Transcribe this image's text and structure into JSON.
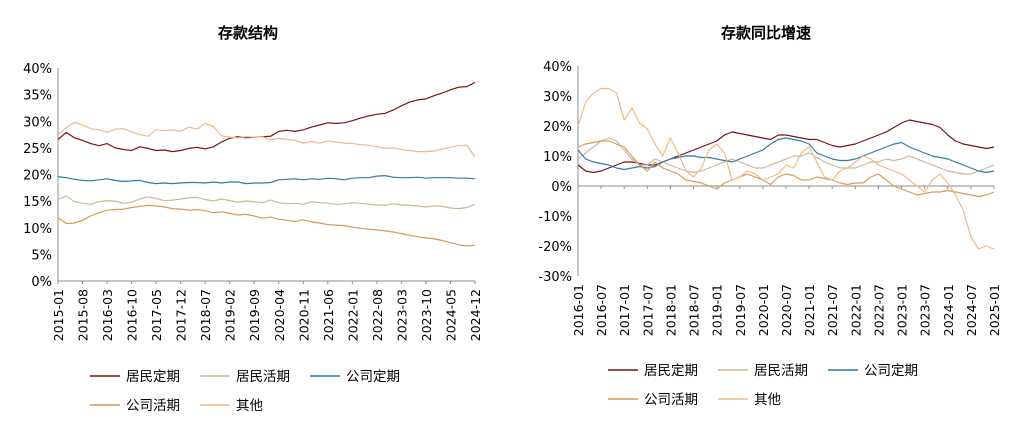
{
  "chart_data": [
    {
      "type": "line",
      "title": "存款结构",
      "xlabel": "",
      "ylabel": "",
      "ylim": [
        0,
        40
      ],
      "y_ticks": [
        "0%",
        "5%",
        "10%",
        "15%",
        "20%",
        "25%",
        "30%",
        "35%",
        "40%"
      ],
      "x": [
        "2015-01",
        "2015-03",
        "2015-05",
        "2015-08",
        "2015-10",
        "2015-12",
        "2016-03",
        "2016-05",
        "2016-08",
        "2016-10",
        "2016-12",
        "2017-03",
        "2017-05",
        "2017-08",
        "2017-10",
        "2017-12",
        "2018-03",
        "2018-05",
        "2018-07",
        "2018-10",
        "2018-12",
        "2019-02",
        "2019-04",
        "2019-06",
        "2019-09",
        "2019-11",
        "2020-01",
        "2020-04",
        "2020-06",
        "2020-09",
        "2020-11",
        "2021-01",
        "2021-04",
        "2021-06",
        "2021-08",
        "2021-10",
        "2022-01",
        "2022-03",
        "2022-05",
        "2022-08",
        "2022-10",
        "2022-12",
        "2023-03",
        "2023-05",
        "2023-08",
        "2023-10",
        "2023-12",
        "2024-02",
        "2024-05",
        "2024-07",
        "2024-09",
        "2024-12"
      ],
      "x_tick_labels": [
        "2015-01",
        "2015-08",
        "2016-03",
        "2016-10",
        "2017-05",
        "2017-12",
        "2018-07",
        "2019-02",
        "2019-09",
        "2020-04",
        "2020-11",
        "2021-06",
        "2022-01",
        "2022-08",
        "2023-03",
        "2023-10",
        "2024-05",
        "2024-12"
      ],
      "series": [
        {
          "name": "居民定期",
          "color": "#7b1113",
          "values": [
            26.6,
            27.9,
            26.9,
            26.4,
            25.8,
            25.4,
            25.8,
            25.0,
            24.7,
            24.5,
            25.2,
            24.9,
            24.5,
            24.6,
            24.3,
            24.5,
            24.9,
            25.1,
            24.8,
            25.2,
            26.1,
            26.8,
            27.1,
            26.9,
            27.0,
            27.1,
            27.2,
            28.1,
            28.3,
            28.1,
            28.4,
            28.9,
            29.3,
            29.7,
            29.6,
            29.7,
            30.1,
            30.6,
            31.0,
            31.3,
            31.5,
            32.1,
            32.9,
            33.6,
            34.0,
            34.2,
            34.8,
            35.3,
            35.9,
            36.4,
            36.5,
            37.3
          ]
        },
        {
          "name": "居民活期",
          "color": "#c9b89d",
          "values": [
            15.3,
            16.0,
            14.9,
            14.6,
            14.4,
            14.9,
            15.1,
            15.0,
            14.6,
            14.8,
            15.4,
            15.8,
            15.5,
            15.1,
            15.2,
            15.4,
            15.6,
            15.7,
            15.3,
            15.0,
            15.4,
            15.1,
            14.8,
            15.0,
            14.9,
            14.7,
            15.2,
            14.7,
            14.5,
            14.6,
            14.4,
            14.9,
            14.7,
            14.6,
            14.4,
            14.5,
            14.7,
            14.6,
            14.4,
            14.3,
            14.2,
            14.5,
            14.3,
            14.2,
            14.1,
            13.9,
            14.1,
            14.0,
            13.7,
            13.6,
            13.8,
            14.4
          ]
        },
        {
          "name": "公司定期",
          "color": "#2f7d9f",
          "values": [
            19.6,
            19.4,
            19.1,
            18.9,
            18.8,
            19.0,
            19.2,
            18.9,
            18.7,
            18.8,
            18.9,
            18.5,
            18.3,
            18.4,
            18.3,
            18.4,
            18.5,
            18.5,
            18.4,
            18.6,
            18.4,
            18.6,
            18.6,
            18.3,
            18.4,
            18.4,
            18.5,
            19.0,
            19.1,
            19.2,
            19.0,
            19.2,
            19.1,
            19.3,
            19.2,
            19.0,
            19.3,
            19.4,
            19.4,
            19.7,
            19.8,
            19.5,
            19.4,
            19.4,
            19.5,
            19.3,
            19.4,
            19.4,
            19.4,
            19.3,
            19.3,
            19.2
          ]
        },
        {
          "name": "公司活期",
          "color": "#d79a5b",
          "values": [
            11.9,
            10.8,
            10.9,
            11.4,
            12.2,
            12.8,
            13.3,
            13.4,
            13.5,
            13.8,
            14.0,
            14.2,
            14.1,
            13.9,
            13.6,
            13.5,
            13.3,
            13.4,
            13.2,
            12.8,
            13.0,
            12.7,
            12.4,
            12.5,
            12.2,
            11.8,
            12.0,
            11.6,
            11.4,
            11.2,
            11.5,
            11.1,
            10.9,
            10.6,
            10.5,
            10.4,
            10.1,
            9.9,
            9.7,
            9.6,
            9.4,
            9.2,
            8.9,
            8.6,
            8.3,
            8.1,
            7.9,
            7.6,
            7.2,
            6.8,
            6.6,
            6.7
          ]
        },
        {
          "name": "其他",
          "color": "#f0b987",
          "values": [
            27.5,
            28.8,
            29.8,
            29.3,
            28.6,
            28.4,
            27.9,
            28.5,
            28.6,
            28.0,
            27.5,
            27.2,
            28.4,
            28.2,
            28.4,
            28.1,
            28.9,
            28.5,
            29.6,
            29.0,
            27.3,
            27.0,
            26.9,
            27.1,
            27.0,
            27.1,
            26.5,
            26.8,
            26.6,
            26.4,
            25.9,
            26.2,
            25.9,
            26.3,
            26.1,
            25.9,
            25.8,
            25.6,
            25.5,
            25.2,
            24.9,
            25.0,
            24.7,
            24.5,
            24.3,
            24.3,
            24.4,
            24.8,
            25.1,
            25.4,
            25.5,
            23.3
          ]
        }
      ],
      "legend": "bottom"
    },
    {
      "type": "line",
      "title": "存款同比增速",
      "xlabel": "",
      "ylabel": "",
      "ylim": [
        -30,
        40
      ],
      "y_ticks": [
        "-30%",
        "-20%",
        "-10%",
        "0%",
        "10%",
        "20%",
        "30%",
        "40%"
      ],
      "x": [
        "2016-01",
        "2016-03",
        "2016-05",
        "2016-07",
        "2016-09",
        "2016-11",
        "2017-01",
        "2017-03",
        "2017-05",
        "2017-07",
        "2017-09",
        "2017-11",
        "2018-01",
        "2018-03",
        "2018-05",
        "2018-07",
        "2018-09",
        "2018-11",
        "2019-01",
        "2019-03",
        "2019-05",
        "2019-07",
        "2019-09",
        "2019-11",
        "2020-01",
        "2020-03",
        "2020-05",
        "2020-07",
        "2020-09",
        "2020-11",
        "2021-01",
        "2021-03",
        "2021-05",
        "2021-07",
        "2021-09",
        "2021-11",
        "2022-01",
        "2022-03",
        "2022-05",
        "2022-07",
        "2022-09",
        "2022-11",
        "2023-01",
        "2023-03",
        "2023-05",
        "2023-07",
        "2023-09",
        "2023-11",
        "2024-01",
        "2024-03",
        "2024-05",
        "2024-07",
        "2024-09",
        "2024-11",
        "2025-01"
      ],
      "x_tick_labels": [
        "2016-01",
        "2016-07",
        "2017-01",
        "2017-07",
        "2018-01",
        "2018-07",
        "2019-01",
        "2019-07",
        "2020-01",
        "2020-07",
        "2021-01",
        "2021-07",
        "2022-01",
        "2022-07",
        "2023-01",
        "2023-07",
        "2024-01",
        "2024-07",
        "2025-01"
      ],
      "series": [
        {
          "name": "居民定期",
          "color": "#7b1113",
          "values": [
            7,
            5,
            4.5,
            5,
            6,
            7,
            8,
            8,
            7.5,
            7,
            7,
            8,
            9,
            10,
            11,
            12,
            13,
            14,
            15,
            17,
            18,
            17.5,
            17,
            16.5,
            16,
            15.5,
            17,
            17,
            16.5,
            16,
            15.5,
            15.5,
            14.5,
            13.5,
            13,
            13.5,
            14,
            15,
            16,
            17,
            18,
            19.5,
            21,
            22,
            21.5,
            21,
            20.5,
            19.5,
            17,
            15,
            14,
            13.5,
            13,
            12.5,
            13
          ]
        },
        {
          "name": "居民活期",
          "color": "#c9b89d",
          "values": [
            9,
            11,
            13,
            15,
            16,
            15,
            12,
            9,
            7,
            7,
            9,
            8,
            7,
            6,
            5,
            4.5,
            5,
            6,
            7,
            8,
            9,
            8,
            7,
            6,
            6,
            7,
            8,
            9,
            10,
            10,
            11,
            9.5,
            8,
            7,
            6,
            6,
            6,
            7,
            8,
            8,
            9,
            8.5,
            9,
            10,
            9,
            8,
            7,
            6,
            5,
            4.5,
            4,
            4,
            5,
            6,
            7
          ]
        },
        {
          "name": "公司定期",
          "color": "#2f7d9f",
          "values": [
            12,
            9,
            8,
            7.5,
            7,
            6,
            5.5,
            6,
            6.5,
            6,
            6.5,
            8,
            9,
            9.5,
            10,
            10,
            9.5,
            9.5,
            9,
            8.5,
            8,
            9,
            10,
            11,
            12,
            14,
            15.5,
            16,
            15.5,
            15,
            14,
            11,
            10,
            9,
            8.5,
            8.5,
            9,
            10,
            11,
            12,
            13,
            14,
            14.5,
            13,
            12,
            11,
            10,
            9.5,
            9,
            8,
            7,
            6,
            5,
            4.5,
            5
          ]
        },
        {
          "name": "公司活期",
          "color": "#d79a5b",
          "values": [
            13,
            14,
            14.5,
            15,
            15,
            14,
            13,
            10,
            7,
            5,
            8,
            6,
            5,
            4,
            2,
            1.5,
            1,
            0,
            -1,
            1,
            2,
            3,
            4,
            3,
            2,
            0.5,
            3,
            4,
            3.5,
            2,
            2,
            3,
            2.5,
            2,
            1,
            0.5,
            1,
            1,
            3,
            4,
            2,
            0,
            -1,
            -2,
            -3,
            -2.5,
            -2,
            -2,
            -1.5,
            -2,
            -2.5,
            -3,
            -3.5,
            -3,
            -2
          ]
        },
        {
          "name": "其他",
          "color": "#f0b987",
          "values": [
            20,
            28,
            31,
            32.5,
            32.5,
            31,
            22,
            26,
            21,
            19,
            14,
            10,
            16,
            11,
            5,
            3,
            6,
            12,
            14,
            11,
            2,
            3,
            5,
            4,
            2,
            3,
            4,
            7,
            6,
            11,
            13,
            8,
            3,
            2,
            5,
            6,
            8,
            10,
            9,
            7,
            6,
            5,
            4,
            2,
            0,
            -2,
            2,
            4,
            1,
            -3,
            -8,
            -17,
            -21,
            -20,
            -21
          ]
        }
      ],
      "legend": "bottom"
    }
  ]
}
